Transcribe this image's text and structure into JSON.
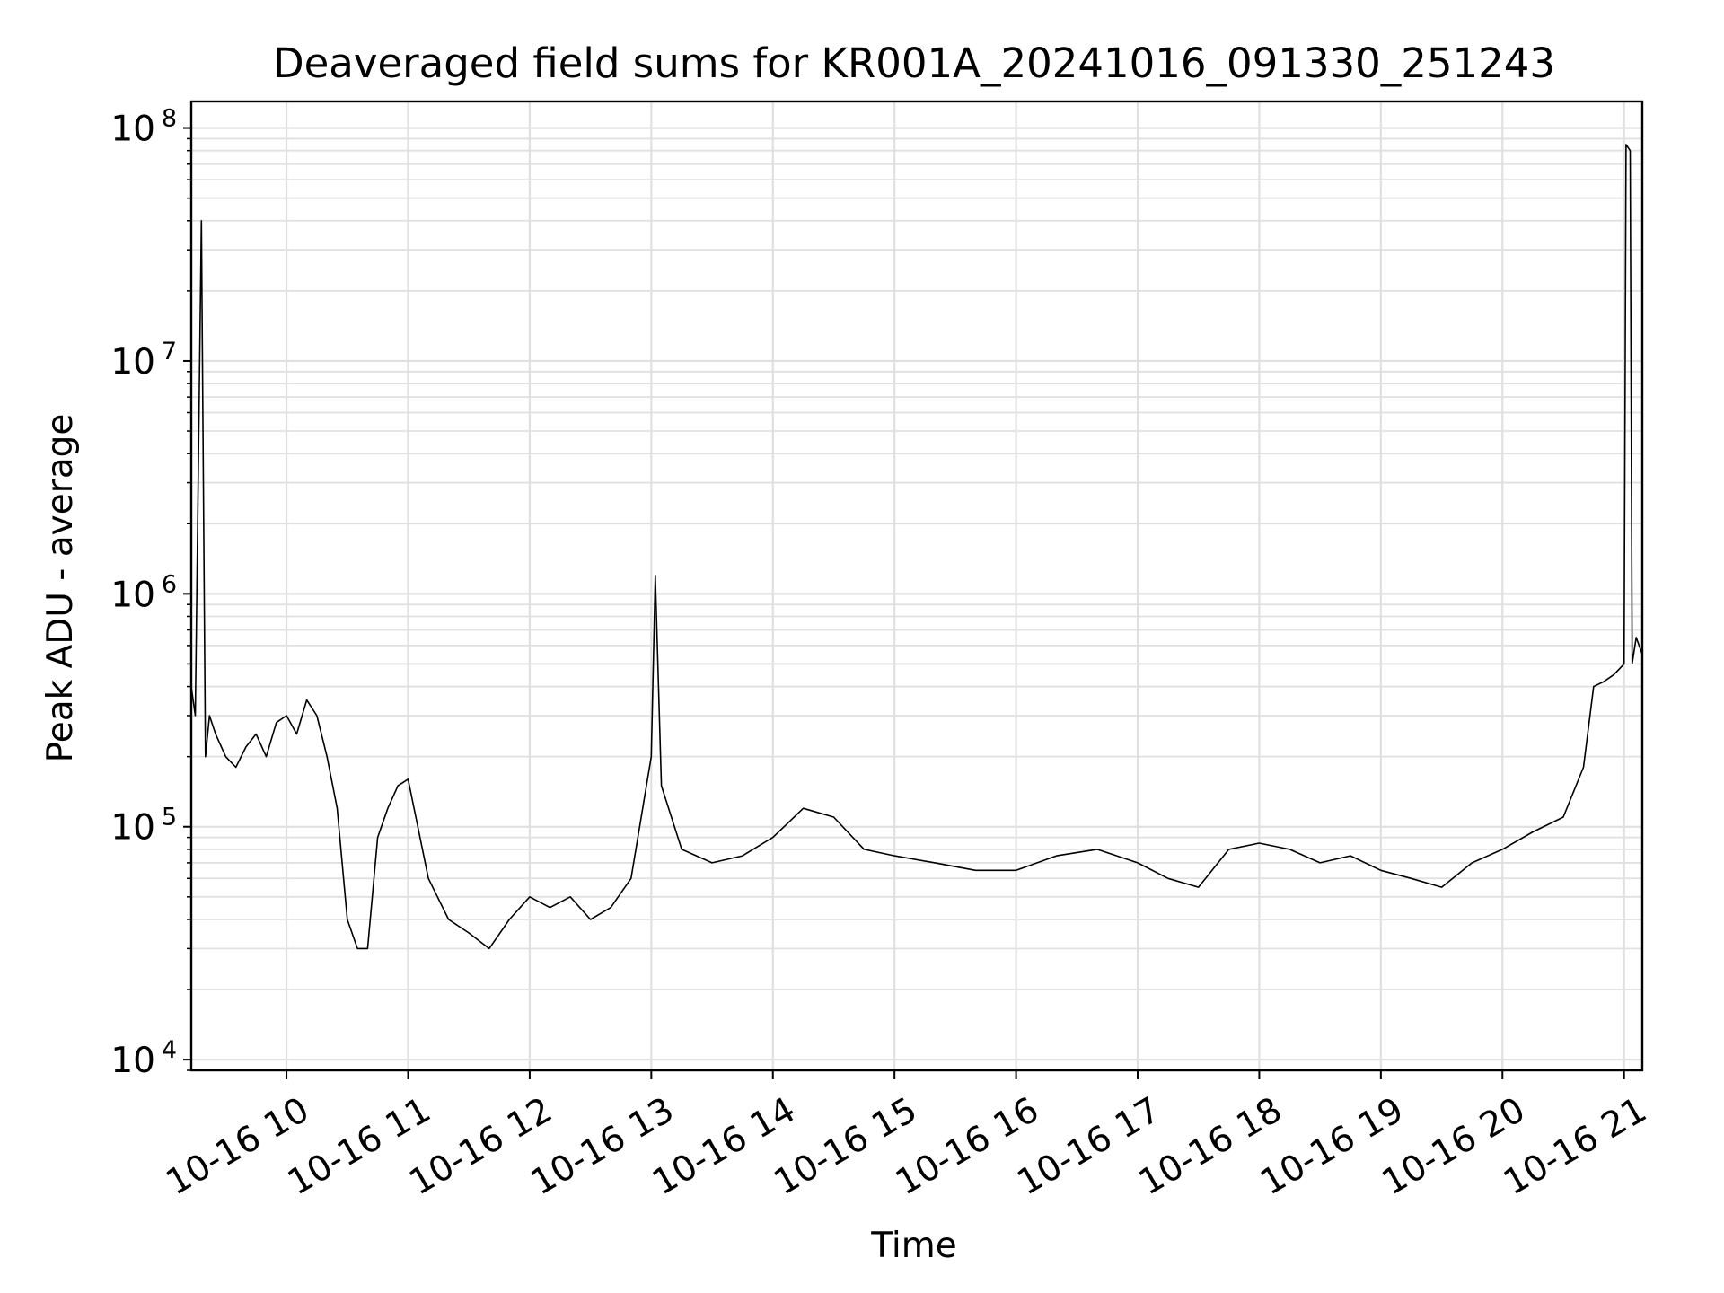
{
  "chart_data": {
    "type": "line",
    "title": "Deaveraged field sums for KR001A_20241016_091330_251243",
    "xlabel": "Time",
    "ylabel": "Peak ADU - average",
    "y_scale": "log",
    "ylim": [
      9000,
      130000000
    ],
    "xlim": [
      "2024-10-16 09:13",
      "2024-10-16 21:09"
    ],
    "grid": true,
    "line_color": "#000000",
    "grid_color": "#e0e0e0",
    "x_ticks": [
      {
        "t": "2024-10-16 10:00",
        "label": "10-16 10"
      },
      {
        "t": "2024-10-16 11:00",
        "label": "10-16 11"
      },
      {
        "t": "2024-10-16 12:00",
        "label": "10-16 12"
      },
      {
        "t": "2024-10-16 13:00",
        "label": "10-16 13"
      },
      {
        "t": "2024-10-16 14:00",
        "label": "10-16 14"
      },
      {
        "t": "2024-10-16 15:00",
        "label": "10-16 15"
      },
      {
        "t": "2024-10-16 16:00",
        "label": "10-16 16"
      },
      {
        "t": "2024-10-16 17:00",
        "label": "10-16 17"
      },
      {
        "t": "2024-10-16 18:00",
        "label": "10-16 18"
      },
      {
        "t": "2024-10-16 19:00",
        "label": "10-16 19"
      },
      {
        "t": "2024-10-16 20:00",
        "label": "10-16 20"
      },
      {
        "t": "2024-10-16 21:00",
        "label": "10-16 21"
      }
    ],
    "y_ticks": [
      {
        "value": 10000,
        "base": "10",
        "exp": "4"
      },
      {
        "value": 100000,
        "base": "10",
        "exp": "5"
      },
      {
        "value": 1000000,
        "base": "10",
        "exp": "6"
      },
      {
        "value": 10000000,
        "base": "10",
        "exp": "7"
      },
      {
        "value": 100000000,
        "base": "10",
        "exp": "8"
      }
    ],
    "series": [
      {
        "x": [
          "2024-10-16 09:13",
          "2024-10-16 09:15",
          "2024-10-16 09:18",
          "2024-10-16 09:20",
          "2024-10-16 09:22",
          "2024-10-16 09:25",
          "2024-10-16 09:30",
          "2024-10-16 09:35",
          "2024-10-16 09:40",
          "2024-10-16 09:45",
          "2024-10-16 09:50",
          "2024-10-16 09:55",
          "2024-10-16 10:00",
          "2024-10-16 10:05",
          "2024-10-16 10:10",
          "2024-10-16 10:15",
          "2024-10-16 10:20",
          "2024-10-16 10:25",
          "2024-10-16 10:30",
          "2024-10-16 10:35",
          "2024-10-16 10:40",
          "2024-10-16 10:45",
          "2024-10-16 10:50",
          "2024-10-16 10:55",
          "2024-10-16 11:00",
          "2024-10-16 11:10",
          "2024-10-16 11:20",
          "2024-10-16 11:30",
          "2024-10-16 11:40",
          "2024-10-16 11:50",
          "2024-10-16 12:00",
          "2024-10-16 12:10",
          "2024-10-16 12:20",
          "2024-10-16 12:30",
          "2024-10-16 12:40",
          "2024-10-16 12:50",
          "2024-10-16 13:00",
          "2024-10-16 13:02",
          "2024-10-16 13:05",
          "2024-10-16 13:15",
          "2024-10-16 13:30",
          "2024-10-16 13:45",
          "2024-10-16 14:00",
          "2024-10-16 14:15",
          "2024-10-16 14:30",
          "2024-10-16 14:45",
          "2024-10-16 15:00",
          "2024-10-16 15:20",
          "2024-10-16 15:40",
          "2024-10-16 16:00",
          "2024-10-16 16:20",
          "2024-10-16 16:40",
          "2024-10-16 17:00",
          "2024-10-16 17:15",
          "2024-10-16 17:30",
          "2024-10-16 17:45",
          "2024-10-16 18:00",
          "2024-10-16 18:15",
          "2024-10-16 18:30",
          "2024-10-16 18:45",
          "2024-10-16 19:00",
          "2024-10-16 19:15",
          "2024-10-16 19:30",
          "2024-10-16 19:45",
          "2024-10-16 20:00",
          "2024-10-16 20:15",
          "2024-10-16 20:30",
          "2024-10-16 20:40",
          "2024-10-16 20:45",
          "2024-10-16 20:50",
          "2024-10-16 20:55",
          "2024-10-16 21:00",
          "2024-10-16 21:01",
          "2024-10-16 21:03",
          "2024-10-16 21:04",
          "2024-10-16 21:06",
          "2024-10-16 21:09"
        ],
        "values": [
          400000,
          300000,
          40000000,
          200000,
          300000,
          250000,
          200000,
          180000,
          220000,
          250000,
          200000,
          280000,
          300000,
          250000,
          350000,
          300000,
          200000,
          120000,
          40000,
          30000,
          30000,
          90000,
          120000,
          150000,
          160000,
          60000,
          40000,
          35000,
          30000,
          40000,
          50000,
          45000,
          50000,
          40000,
          45000,
          60000,
          200000,
          1200000,
          150000,
          80000,
          70000,
          75000,
          90000,
          120000,
          110000,
          80000,
          75000,
          70000,
          65000,
          65000,
          75000,
          80000,
          70000,
          60000,
          55000,
          80000,
          85000,
          80000,
          70000,
          75000,
          65000,
          60000,
          55000,
          70000,
          80000,
          95000,
          110000,
          180000,
          400000,
          420000,
          450000,
          500000,
          85000000,
          80000000,
          500000,
          650000,
          550000
        ]
      }
    ]
  }
}
